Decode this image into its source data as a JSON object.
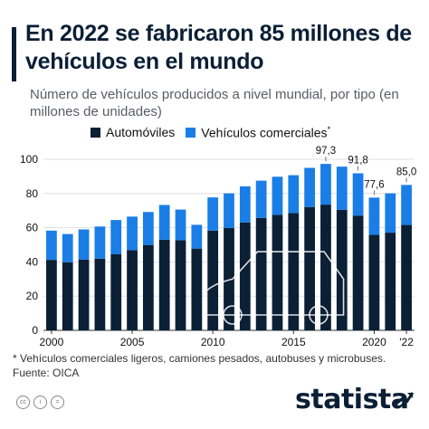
{
  "header": {
    "title": "En 2022 se fabricaron 85 millones de vehículos en el mundo",
    "subtitle": "Número de vehículos producidos a nivel mundial, por tipo (en millones de unidades)"
  },
  "legend": {
    "cars_label": "Automóviles",
    "commercial_label": "Vehículos comerciales",
    "commercial_marker": "*"
  },
  "colors": {
    "cars": "#0b1f35",
    "commercial": "#1a7ee6",
    "grid": "#d9d9d9",
    "text": "#111111"
  },
  "chart_data": {
    "type": "bar",
    "stacked": true,
    "categories": [
      "2000",
      "2001",
      "2002",
      "2003",
      "2004",
      "2005",
      "2006",
      "2007",
      "2008",
      "2009",
      "2010",
      "2011",
      "2012",
      "2013",
      "2014",
      "2015",
      "2016",
      "2017",
      "2018",
      "2019",
      "2020",
      "2021",
      "2022"
    ],
    "x_tick_labels": [
      {
        "category": "2000",
        "label": "2000"
      },
      {
        "category": "2005",
        "label": "2005"
      },
      {
        "category": "2010",
        "label": "2010"
      },
      {
        "category": "2015",
        "label": "2015"
      },
      {
        "category": "2020",
        "label": "2020"
      },
      {
        "category": "2022",
        "label": "'22"
      }
    ],
    "series": [
      {
        "name": "Automóviles",
        "values": [
          41.2,
          39.8,
          41.4,
          41.9,
          44.6,
          46.9,
          49.9,
          53.0,
          52.7,
          47.8,
          58.3,
          59.9,
          63.1,
          65.7,
          67.5,
          68.5,
          72.1,
          73.5,
          70.5,
          67.1,
          55.8,
          57.1,
          61.6
        ]
      },
      {
        "name": "Vehículos comerciales",
        "values": [
          17.1,
          16.5,
          17.6,
          18.8,
          19.9,
          19.6,
          19.3,
          20.3,
          17.9,
          13.9,
          19.4,
          20.2,
          21.1,
          21.8,
          22.3,
          22.2,
          22.9,
          23.8,
          25.2,
          24.7,
          21.8,
          23.0,
          23.4
        ]
      }
    ],
    "total_labels": [
      {
        "category": "2017",
        "label": "97,3"
      },
      {
        "category": "2019",
        "label": "91,8"
      },
      {
        "category": "2020",
        "label": "77,6"
      },
      {
        "category": "2022",
        "label": "85,0"
      }
    ],
    "y_ticks": [
      0,
      20,
      40,
      60,
      80,
      100
    ],
    "ylim": [
      0,
      100
    ],
    "grid": true,
    "legend_position": "top"
  },
  "footer": {
    "footnote": "* Vehículos comerciales ligeros, camiones pesados, autobuses y microbuses.",
    "source": "Fuente: OICA",
    "brand": "statista"
  }
}
